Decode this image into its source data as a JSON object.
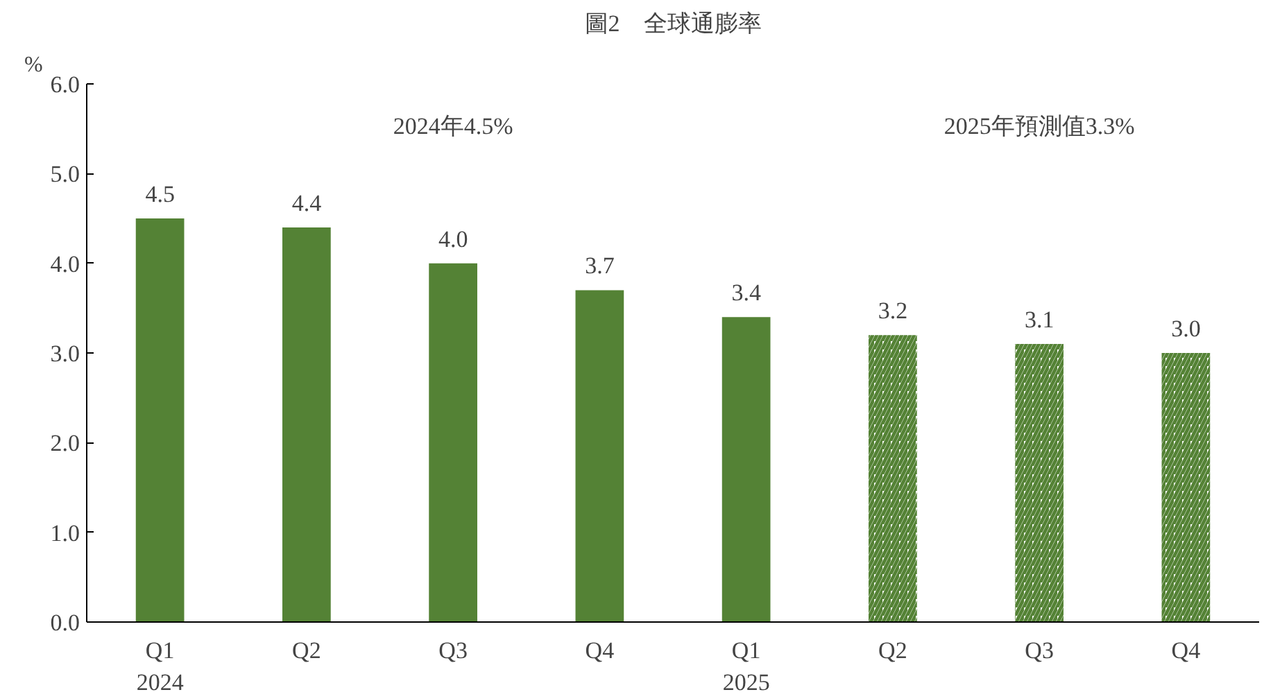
{
  "chart_data": {
    "type": "bar",
    "title": "圖2　全球通膨率",
    "ylabel": "%",
    "categories": [
      "Q1\n2024",
      "Q2",
      "Q3",
      "Q4",
      "Q1\n2025",
      "Q2",
      "Q3",
      "Q4"
    ],
    "series": [
      {
        "color": "#548235",
        "values": [
          4.5,
          4.4,
          4.0,
          3.7,
          3.4,
          null,
          null,
          null
        ],
        "value_labels": [
          "4.5",
          "4.4",
          "4.0",
          "3.7",
          "3.4",
          null,
          null,
          null
        ]
      },
      {
        "color": "#548235",
        "values": [
          null,
          null,
          null,
          null,
          null,
          3.2,
          3.1,
          3.0
        ],
        "value_labels": [
          null,
          null,
          null,
          null,
          null,
          "3.2",
          "3.1",
          "3.0"
        ]
      }
    ],
    "ylim": [
      0,
      6
    ],
    "yticks": [
      {
        "value": 0,
        "label": "0.0"
      },
      {
        "value": 1,
        "label": "1.0"
      },
      {
        "value": 2,
        "label": "2.0"
      },
      {
        "value": 3,
        "label": "3.0"
      },
      {
        "value": 4,
        "label": "4.0"
      },
      {
        "value": 5,
        "label": "5.0"
      },
      {
        "value": 6,
        "label": "6.0"
      }
    ],
    "annotations": [
      "2024年4.5%",
      "2025年預測值3.3%"
    ],
    "grid": false
  }
}
